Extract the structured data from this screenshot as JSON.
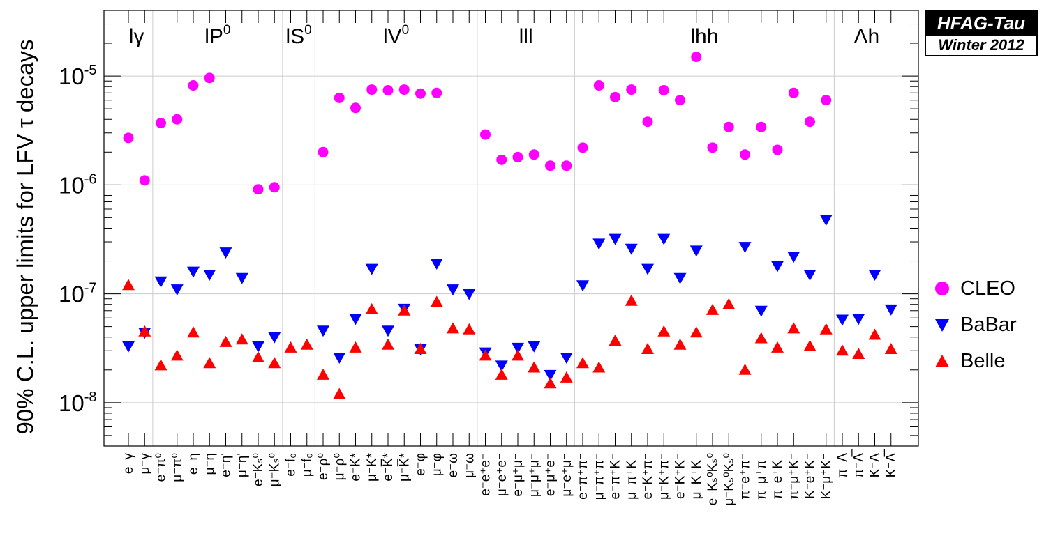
{
  "chart_data": {
    "type": "scatter",
    "yscale": "log",
    "ylim": [
      4e-09,
      4e-05
    ],
    "ylabel": "90% C.L. upper limits for LFV  τ decays",
    "ytick_labels": [
      {
        "base": "10",
        "exp": "-8",
        "value": 1e-08
      },
      {
        "base": "10",
        "exp": "-7",
        "value": 1e-07
      },
      {
        "base": "10",
        "exp": "-6",
        "value": 1e-06
      },
      {
        "base": "10",
        "exp": "-5",
        "value": 1e-05
      }
    ],
    "categories": [
      "e⁻γ",
      "μ⁻γ",
      "e⁻π⁰",
      "μ⁻π⁰",
      "e⁻η",
      "μ⁻η",
      "e⁻η'",
      "μ⁻η'",
      "e⁻Kₛ⁰",
      "μ⁻Kₛ⁰",
      "e⁻f₀",
      "μ⁻f₀",
      "e⁻ρ⁰",
      "μ⁻ρ⁰",
      "e⁻K*",
      "μ⁻K*",
      "e⁻K̅*",
      "μ⁻K̅*",
      "e⁻φ",
      "μ⁻φ",
      "e⁻ω",
      "μ⁻ω",
      "e⁻e⁺e⁻",
      "μ⁻e⁺e⁻",
      "e⁻μ⁺μ⁻",
      "μ⁻μ⁺μ⁻",
      "e⁻μ⁺e⁻",
      "μ⁻e⁺μ⁻",
      "e⁻π⁺π⁻",
      "μ⁻π⁺π⁻",
      "e⁻π⁺K⁻",
      "μ⁻π⁺K⁻",
      "e⁻K⁺π⁻",
      "μ⁻K⁺π⁻",
      "e⁻K⁺K⁻",
      "μ⁻K⁺K⁻",
      "e⁻Kₛ⁰Kₛ⁰",
      "μ⁻Kₛ⁰Kₛ⁰",
      "π⁻e⁺π⁻",
      "π⁻μ⁺π⁻",
      "π⁻e⁺K⁻",
      "π⁻μ⁺K⁻",
      "K⁻e⁺K⁻",
      "K⁻μ⁺K⁻",
      "π⁻Λ",
      "π⁻Λ̅",
      "K⁻Λ",
      "K⁻Λ̅"
    ],
    "groups": [
      {
        "label": "lγ",
        "start": 0,
        "end": 1
      },
      {
        "label": "lP",
        "sup": "0",
        "start": 2,
        "end": 9
      },
      {
        "label": "lS",
        "sup": "0",
        "start": 10,
        "end": 11
      },
      {
        "label": "lV",
        "sup": "0",
        "start": 12,
        "end": 21
      },
      {
        "label": "lll",
        "start": 22,
        "end": 27
      },
      {
        "label": "lhh",
        "start": 28,
        "end": 43
      },
      {
        "label": "Λh",
        "start": 44,
        "end": 47
      }
    ],
    "series": [
      {
        "name": "CLEO",
        "marker": "circle",
        "color": "#ff00ff",
        "values": [
          2.7e-06,
          1.1e-06,
          3.7e-06,
          4e-06,
          8.2e-06,
          9.6e-06,
          null,
          null,
          9.1e-07,
          9.5e-07,
          null,
          null,
          2e-06,
          6.3e-06,
          5.1e-06,
          7.5e-06,
          7.4e-06,
          7.5e-06,
          6.9e-06,
          7e-06,
          null,
          null,
          2.9e-06,
          1.7e-06,
          1.8e-06,
          1.9e-06,
          1.5e-06,
          1.5e-06,
          2.2e-06,
          8.2e-06,
          6.4e-06,
          7.5e-06,
          3.8e-06,
          7.4e-06,
          6e-06,
          1.5e-05,
          2.2e-06,
          3.4e-06,
          1.9e-06,
          3.4e-06,
          2.1e-06,
          7e-06,
          3.8e-06,
          6e-06,
          null,
          null,
          null,
          null
        ]
      },
      {
        "name": "BaBar",
        "marker": "triangle-down",
        "color": "#0000ff",
        "values": [
          3.3e-08,
          4.4e-08,
          1.3e-07,
          1.1e-07,
          1.6e-07,
          1.5e-07,
          2.4e-07,
          1.4e-07,
          3.3e-08,
          4e-08,
          null,
          null,
          4.6e-08,
          2.6e-08,
          5.9e-08,
          1.7e-07,
          4.6e-08,
          7.3e-08,
          3.1e-08,
          1.9e-07,
          1.1e-07,
          1e-07,
          2.9e-08,
          2.2e-08,
          3.2e-08,
          3.3e-08,
          1.8e-08,
          2.6e-08,
          1.2e-07,
          2.9e-07,
          3.2e-07,
          2.6e-07,
          1.7e-07,
          3.2e-07,
          1.4e-07,
          2.5e-07,
          null,
          null,
          2.7e-07,
          7e-08,
          1.8e-07,
          2.2e-07,
          1.5e-07,
          4.8e-07,
          5.8e-08,
          5.9e-08,
          1.5e-07,
          7.2e-08
        ]
      },
      {
        "name": "Belle",
        "marker": "triangle-up",
        "color": "#ff0000",
        "values": [
          1.2e-07,
          4.5e-08,
          2.2e-08,
          2.7e-08,
          4.4e-08,
          2.3e-08,
          3.6e-08,
          3.8e-08,
          2.6e-08,
          2.3e-08,
          3.2e-08,
          3.4e-08,
          1.8e-08,
          1.2e-08,
          3.2e-08,
          7.2e-08,
          3.4e-08,
          7e-08,
          3.1e-08,
          8.4e-08,
          4.8e-08,
          4.7e-08,
          2.7e-08,
          1.8e-08,
          2.7e-08,
          2.1e-08,
          1.5e-08,
          1.7e-08,
          2.3e-08,
          2.1e-08,
          3.7e-08,
          8.6e-08,
          3.1e-08,
          4.5e-08,
          3.4e-08,
          4.4e-08,
          7.1e-08,
          8e-08,
          2e-08,
          3.9e-08,
          3.2e-08,
          4.8e-08,
          3.3e-08,
          4.7e-08,
          3e-08,
          2.8e-08,
          4.2e-08,
          3.1e-08
        ]
      }
    ],
    "legend_position": "right"
  },
  "badge": {
    "title": "HFAG-Tau",
    "subtitle": "Winter 2012"
  },
  "legend": [
    {
      "label": "CLEO",
      "marker": "circle",
      "color": "#ff00ff"
    },
    {
      "label": "BaBar",
      "marker": "triangle-down",
      "color": "#0000ff"
    },
    {
      "label": "Belle",
      "marker": "triangle-up",
      "color": "#ff0000"
    }
  ]
}
